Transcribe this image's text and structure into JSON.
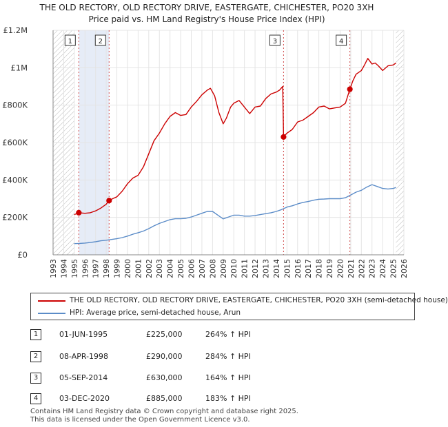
{
  "title": {
    "line1": "THE OLD RECTORY, OLD RECTORY DRIVE, EASTERGATE, CHICHESTER, PO20 3XH",
    "line2": "Price paid vs. HM Land Registry's House Price Index (HPI)"
  },
  "chart_data": {
    "type": "line",
    "title": "THE OLD RECTORY, OLD RECTORY DRIVE, EASTERGATE, CHICHESTER, PO20 3XH — Price paid vs. HM Land Registry's House Price Index (HPI)",
    "xlabel": "",
    "ylabel": "",
    "xlim": [
      1993,
      2026
    ],
    "ylim": [
      0,
      1200000
    ],
    "x_ticks": [
      "1993",
      "1994",
      "1995",
      "1996",
      "1997",
      "1998",
      "1999",
      "2000",
      "2001",
      "2002",
      "2003",
      "2004",
      "2005",
      "2006",
      "2007",
      "2008",
      "2009",
      "2010",
      "2011",
      "2012",
      "2013",
      "2014",
      "2015",
      "2016",
      "2017",
      "2018",
      "2019",
      "2020",
      "2021",
      "2022",
      "2023",
      "2024",
      "2025",
      "2026"
    ],
    "y_ticks": [
      {
        "value": 0,
        "label": "£0"
      },
      {
        "value": 200000,
        "label": "£200K"
      },
      {
        "value": 400000,
        "label": "£400K"
      },
      {
        "value": 600000,
        "label": "£600K"
      },
      {
        "value": 800000,
        "label": "£800K"
      },
      {
        "value": 1000000,
        "label": "£1M"
      },
      {
        "value": 1200000,
        "label": "£1.2M"
      }
    ],
    "grid": true,
    "hatched_ranges": [
      [
        1993,
        1995
      ],
      [
        2025.25,
        2026
      ]
    ],
    "highlight_band": [
      1995.42,
      1998.27
    ],
    "series": [
      {
        "name": "THE OLD RECTORY, OLD RECTORY DRIVE, EASTERGATE, CHICHESTER, PO20 3XH (semi-detached house)",
        "color": "#cc0000",
        "x": [
          1995.0,
          1995.42,
          1996.0,
          1996.5,
          1997.0,
          1997.5,
          1998.0,
          1998.27,
          1998.6,
          1999.0,
          1999.5,
          2000.0,
          2000.5,
          2001.0,
          2001.5,
          2002.0,
          2002.5,
          2003.0,
          2003.5,
          2004.0,
          2004.5,
          2005.0,
          2005.5,
          2006.0,
          2006.5,
          2007.0,
          2007.5,
          2007.8,
          2008.2,
          2008.6,
          2009.0,
          2009.3,
          2009.7,
          2010.0,
          2010.5,
          2011.0,
          2011.5,
          2012.0,
          2012.5,
          2013.0,
          2013.5,
          2014.0,
          2014.3,
          2014.6,
          2014.68,
          2015.0,
          2015.5,
          2016.0,
          2016.5,
          2017.0,
          2017.5,
          2018.0,
          2018.5,
          2019.0,
          2019.5,
          2020.0,
          2020.5,
          2020.92,
          2021.2,
          2021.5,
          2022.0,
          2022.3,
          2022.6,
          2023.0,
          2023.3,
          2023.6,
          2024.0,
          2024.5,
          2025.0,
          2025.25
        ],
        "y": [
          215000,
          225000,
          222000,
          225000,
          235000,
          250000,
          270000,
          290000,
          300000,
          310000,
          340000,
          380000,
          410000,
          425000,
          470000,
          540000,
          610000,
          650000,
          700000,
          740000,
          760000,
          745000,
          750000,
          790000,
          820000,
          855000,
          880000,
          890000,
          850000,
          760000,
          700000,
          730000,
          790000,
          810000,
          825000,
          790000,
          755000,
          790000,
          795000,
          835000,
          860000,
          870000,
          880000,
          900000,
          630000,
          650000,
          670000,
          710000,
          720000,
          740000,
          760000,
          790000,
          795000,
          780000,
          785000,
          790000,
          810000,
          885000,
          930000,
          965000,
          985000,
          1015000,
          1050000,
          1020000,
          1025000,
          1010000,
          985000,
          1010000,
          1015000,
          1025000
        ]
      },
      {
        "name": "HPI: Average price, semi-detached house, Arun",
        "color": "#5b8cc8",
        "x": [
          1995.0,
          1995.5,
          1996.0,
          1996.5,
          1997.0,
          1997.5,
          1998.0,
          1998.5,
          1999.0,
          1999.5,
          2000.0,
          2000.5,
          2001.0,
          2001.5,
          2002.0,
          2002.5,
          2003.0,
          2003.5,
          2004.0,
          2004.5,
          2005.0,
          2005.5,
          2006.0,
          2006.5,
          2007.0,
          2007.5,
          2008.0,
          2008.5,
          2009.0,
          2009.5,
          2010.0,
          2010.5,
          2011.0,
          2011.5,
          2012.0,
          2012.5,
          2013.0,
          2013.5,
          2014.0,
          2014.5,
          2015.0,
          2015.5,
          2016.0,
          2016.5,
          2017.0,
          2017.5,
          2018.0,
          2018.5,
          2019.0,
          2019.5,
          2020.0,
          2020.5,
          2021.0,
          2021.5,
          2022.0,
          2022.5,
          2023.0,
          2023.5,
          2024.0,
          2024.5,
          2025.0,
          2025.25
        ],
        "y": [
          60000,
          61000,
          63000,
          66000,
          70000,
          75000,
          78000,
          82000,
          86000,
          92000,
          100000,
          110000,
          118000,
          127000,
          140000,
          155000,
          168000,
          178000,
          188000,
          193000,
          193000,
          195000,
          202000,
          212000,
          222000,
          232000,
          232000,
          212000,
          192000,
          202000,
          212000,
          212000,
          207000,
          207000,
          210000,
          215000,
          220000,
          225000,
          232000,
          242000,
          255000,
          262000,
          272000,
          280000,
          285000,
          292000,
          297000,
          298000,
          300000,
          300000,
          300000,
          305000,
          320000,
          335000,
          345000,
          362000,
          375000,
          365000,
          355000,
          352000,
          355000,
          360000
        ]
      }
    ],
    "sales": [
      {
        "label": "1",
        "x": 1995.42,
        "y": 225000
      },
      {
        "label": "2",
        "x": 1998.27,
        "y": 290000
      },
      {
        "label": "3",
        "x": 2014.68,
        "y": 630000
      },
      {
        "label": "4",
        "x": 2020.92,
        "y": 885000
      }
    ]
  },
  "legend": {
    "red_label": "THE OLD RECTORY, OLD RECTORY DRIVE, EASTERGATE, CHICHESTER, PO20 3XH (semi-detached house)",
    "blue_label": "HPI: Average price, semi-detached house, Arun",
    "red_color": "#cc0000",
    "blue_color": "#5b8cc8"
  },
  "transactions": [
    {
      "num": "1",
      "date": "01-JUN-1995",
      "price": "£225,000",
      "hpi": "264% ↑ HPI"
    },
    {
      "num": "2",
      "date": "08-APR-1998",
      "price": "£290,000",
      "hpi": "284% ↑ HPI"
    },
    {
      "num": "3",
      "date": "05-SEP-2014",
      "price": "£630,000",
      "hpi": "164% ↑ HPI"
    },
    {
      "num": "4",
      "date": "03-DEC-2020",
      "price": "£885,000",
      "hpi": "183% ↑ HPI"
    }
  ],
  "footer": {
    "line1": "Contains HM Land Registry data © Crown copyright and database right 2025.",
    "line2": "This data is licensed under the Open Government Licence v3.0."
  }
}
